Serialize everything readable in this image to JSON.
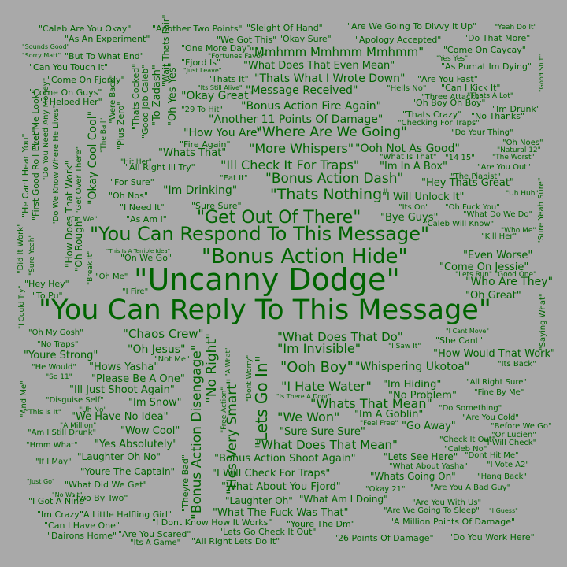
{
  "cloud": {
    "colors": {
      "background": "#a9a9a9",
      "text": "#006400"
    },
    "phrases": [
      "\"Uncanny Dodge\"",
      "\"You Can Reply To This Message\"",
      "\"You Can Respond To This Message\"",
      "\"Bonus Action Hide\"",
      "\"Get Out Of There\"",
      "\"Thats Nothing\"",
      "\"Bonus Action Dash\"",
      "\"Where Are We Going\"",
      "\"More Whispers\"",
      "\"Ill Check It For Traps\"",
      "\"Im Drinking\"",
      "\"Bonus Action Disengage\"",
      "\"Hes Very Smart\"",
      "\"Lets Go In\"",
      "\"No Right\"",
      "\"Ooh Boy\"",
      "\"Im Invisible\"",
      "\"What Does That Do\"",
      "\"Whispering Ukotoa\"",
      "\"Chaos Crew\"",
      "\"Oh Jesus\"",
      "\"We Won\"",
      "\"Whats That Mean\"",
      "\"I Hate Water\"",
      "\"What Does That Mean\"",
      "\"Mmhmm Mmhmm Mmhmm\"",
      "\"What Does That Even Mean\"",
      "\"Thats What I Wrote Down\"",
      "\"Bonus Action Fire Again\"",
      "\"Message Received\"",
      "\"Ooh Not As Good\"",
      "\"Im In A Box\"",
      "\"Hey Thats Great\"",
      "\"How You Are\"",
      "\"Whats That\"",
      "\"Okay Great\"",
      "\"Another 11 Points Of Damage\"",
      "\"Okay Cool Cool\"",
      "\"Even Worse\"",
      "\"Who Are They\"",
      "\"Oh Great\"",
      "\"Come On Jessie\"",
      "\"Bye Guys\"",
      "\"I Will Unlock It\"",
      "\"How Would That Work\"",
      "\"Im Hiding\"",
      "\"No Problem\"",
      "\"Im A Goblin\"",
      "\"Go Away\"",
      "\"Sure Sure Sure\"",
      "\"Youre Strong\"",
      "\"Hows Yasha\"",
      "\"Please Be A One\"",
      "\"Ill Just Shoot Again\"",
      "\"Im Snow\"",
      "\"We Have No Idea\"",
      "\"Wow Cool\"",
      "\"Yes Absolutely\"",
      "\"Laughter Oh No\"",
      "\"Bonus Action Shoot Again\"",
      "\"Lets See Here\"",
      "\"Youre The Captain\"",
      "\"I Will Check For Traps\"",
      "\"Whats Going On\"",
      "\"What About You Fjord\"",
      "\"Laughter Oh\"",
      "\"What Am I Doing\"",
      "\"What The Fuck Was That\"",
      "\"A Little Halfling Girl\"",
      "\"Are We Going To Sleep\"",
      "\"A Million Points Of Damage\"",
      "\"I Dont Know How It Works\"",
      "\"Youre The Dm\"",
      "\"Lets Go Check It Out\"",
      "\"All Right Lets Do It\"",
      "\"26 Points Of Damage\"",
      "\"Do You Work Here\"",
      "\"Dairons Home\"",
      "\"Are You Scared\"",
      "\"Its A Game\"",
      "\"Can I Have One\"",
      "\"Im Crazy\"",
      "\"I Got A Nine\"",
      "\"What Did We Get\"",
      "\"Two By Two\"",
      "\"Caleb Are You Okay\"",
      "\"As An Experiment\"",
      "\"Another Two Points\"",
      "\"Sleight Of Hand\"",
      "\"Are We Going To Divvy It Up\"",
      "\"Yeah Do It\"",
      "\"We Got This\"",
      "\"Okay Sure\"",
      "\"Apology Accepted\"",
      "\"Do That More\"",
      "\"But To What End\"",
      "\"One More Day\"",
      "\"Fortunes Favor\"",
      "\"Come On Caycay\"",
      "\"Can You Touch It\"",
      "\"Fjord Is\"",
      "\"Yes Yes\"",
      "\"As Pumat Im Dying\"",
      "\"Come On Fjordy\"",
      "\"Thats It\"",
      "\"Are You Fast\"",
      "\"Come On Guys\"",
      "\"Hells No\"",
      "\"Can I Kick It\"",
      "\"Three Attacks\"",
      "\"Thats A Lot\"",
      "\"I Helped Her\"",
      "\"Oh Boy Oh Boy\"",
      "\"Im Drunk\"",
      "\"Thats Crazy\"",
      "\"No Thanks\"",
      "\"Checking For Traps\"",
      "\"Do Your Thing\"",
      "\"29 To Hit\"",
      "\"Fire Again\"",
      "\"All Right Ill Try\"",
      "\"Hit Her\"",
      "\"What Is That\"",
      "\"14 15\"",
      "\"The Worst\"",
      "\"Oh Noes\"",
      "\"Natural 12\"",
      "\"Are You Out\"",
      "\"The Pianist\"",
      "\"For Sure\"",
      "\"Eat It\"",
      "\"Oh Nos\"",
      "\"I Need It\"",
      "\"Sure Sure\"",
      "\"As Am I\"",
      "\"Its On\"",
      "\"Oh Fuck You\"",
      "\"Uh Huh\"",
      "\"What Do We Do\"",
      "\"Caleb Will Know\"",
      "\"Who Me\"",
      "\"Kill Her\"",
      "\"Do We\"",
      "\"On We Go\"",
      "\"This Is A Terrible Idea\"",
      "\"Oh Me\"",
      "\"Hey Hey\"",
      "\"To Pu\"",
      "\"I Fire\"",
      "\"Lets Run\"",
      "\"Good One\"",
      "\"Oh My Gosh\"",
      "\"No Traps\"",
      "\"Not Me\"",
      "\"He Would\"",
      "\"So 11\"",
      "\"Disguise Self\"",
      "\"This Is It\"",
      "\"Uh No\"",
      "\"Am I Still Drunk\"",
      "\"A Million\"",
      "\"Hmm What\"",
      "\"If I May\"",
      "\"Just Go\"",
      "\"No Wait\"",
      "\"I Cant Move\"",
      "\"She Cant\"",
      "\"I Saw It\"",
      "\"Its Back\"",
      "\"All Right Sure\"",
      "\"Fine By Me\"",
      "\"Do Something\"",
      "\"Are You Cold\"",
      "\"Before We Go\"",
      "\"Feel Free\"",
      "\"Or Lucien\"",
      "\"Check It Out\"",
      "\"I Will Check\"",
      "\"Caleb No\"",
      "\"Dont Hit Me\"",
      "\"What About Yasha\"",
      "\"I Vote A2\"",
      "\"Hang Back\"",
      "\"Okay 21\"",
      "\"Are You A Bad Guy\"",
      "\"Are You With Us\"",
      "\"I Guess\"",
      "\"Sounds Good\"",
      "\"Sorry Matt\"",
      "\"Just Leave\"",
      "\"Its Still Alive\"",
      "\"Is There A Door\"",
      "\"Saying What\"",
      "\"Sure Yeah Sure\"",
      "\"Good Stuff\"",
      "\"He Cant Hear You\"",
      "\"First Good Roll Ever\"",
      "\"Let Me Look\"",
      "\"Do You Need Any Money\"",
      "\"Do We Know Where He Lives\"",
      "\"Sure Yeah\"",
      "\"Did It Work\"",
      "\"How Does That Work\"",
      "\"Oh Rough\"",
      "\"Break It\"",
      "\"Get Over There\"",
      "\"Were Back\"",
      "\"The Ball\"",
      "\"Plus Zero\"",
      "\"Thats Cocked\"",
      "\"Good Job Caleb\"",
      "\"To Zadash\"",
      "\"Wait Thats Fair\"",
      "\"Oh Yes Yes\"",
      "\"Theyre Bad\"",
      "\"Free Action\"",
      "\"A What\"",
      "\"Dont Worry\"",
      "\"And Me\"",
      "\"I Could Try\""
    ]
  }
}
